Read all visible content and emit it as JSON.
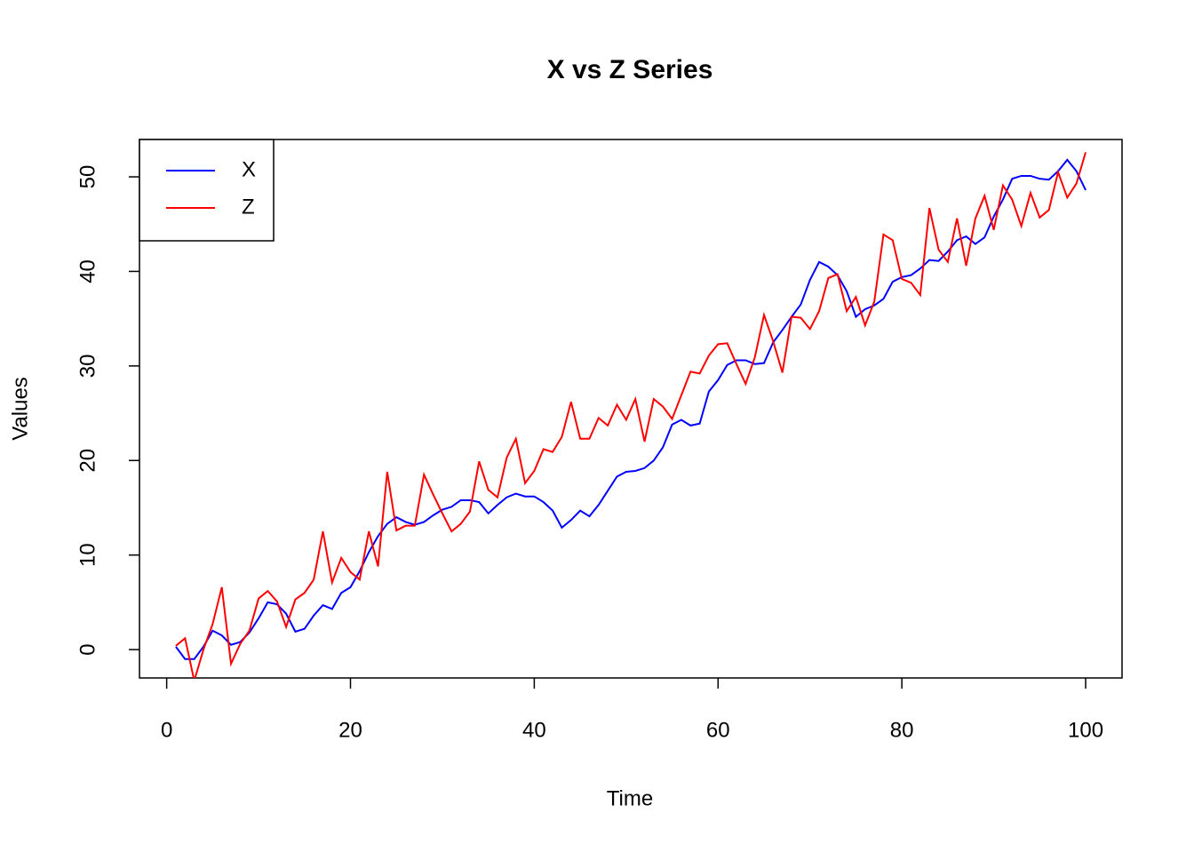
{
  "chart_data": {
    "type": "line",
    "title": "X vs Z Series",
    "x_label": "Time",
    "y_label": "Values",
    "x": [
      1,
      2,
      3,
      4,
      5,
      6,
      7,
      8,
      9,
      10,
      11,
      12,
      13,
      14,
      15,
      16,
      17,
      18,
      19,
      20,
      21,
      22,
      23,
      24,
      25,
      26,
      27,
      28,
      29,
      30,
      31,
      32,
      33,
      34,
      35,
      36,
      37,
      38,
      39,
      40,
      41,
      42,
      43,
      44,
      45,
      46,
      47,
      48,
      49,
      50,
      51,
      52,
      53,
      54,
      55,
      56,
      57,
      58,
      59,
      60,
      61,
      62,
      63,
      64,
      65,
      66,
      67,
      68,
      69,
      70,
      71,
      72,
      73,
      74,
      75,
      76,
      77,
      78,
      79,
      80,
      81,
      82,
      83,
      84,
      85,
      86,
      87,
      88,
      89,
      90,
      91,
      92,
      93,
      94,
      95,
      96,
      97,
      98,
      99,
      100
    ],
    "series": [
      {
        "name": "X",
        "color": "#0000ff",
        "values": [
          0.3,
          -1.0,
          -1.0,
          0.3,
          2.0,
          1.5,
          0.5,
          0.8,
          1.8,
          3.3,
          5.0,
          4.8,
          3.8,
          1.9,
          2.2,
          3.6,
          4.7,
          4.3,
          6.0,
          6.6,
          8.3,
          10.3,
          12.0,
          13.3,
          14.0,
          13.5,
          13.2,
          13.5,
          14.2,
          14.8,
          15.1,
          15.8,
          15.8,
          15.6,
          14.4,
          15.3,
          16.1,
          16.5,
          16.2,
          16.2,
          15.6,
          14.7,
          12.9,
          13.7,
          14.7,
          14.1,
          15.3,
          16.8,
          18.3,
          18.8,
          18.9,
          19.2,
          20.0,
          21.4,
          23.8,
          24.3,
          23.7,
          23.9,
          27.3,
          28.5,
          30.1,
          30.6,
          30.6,
          30.2,
          30.3,
          32.5,
          33.8,
          35.2,
          36.5,
          39.1,
          41.0,
          40.5,
          39.6,
          37.9,
          35.2,
          36.0,
          36.4,
          37.1,
          38.9,
          39.4,
          39.6,
          40.3,
          41.2,
          41.1,
          42.1,
          43.3,
          43.7,
          42.9,
          43.6,
          45.8,
          47.6,
          49.8,
          50.1,
          50.1,
          49.8,
          49.7,
          50.6,
          51.8,
          50.6,
          48.6
        ]
      },
      {
        "name": "Z",
        "color": "#ff0000",
        "values": [
          0.4,
          1.2,
          -3.3,
          0.0,
          2.7,
          6.6,
          -1.5,
          0.6,
          2.0,
          5.4,
          6.2,
          5.1,
          2.4,
          5.3,
          6.0,
          7.4,
          12.5,
          7.1,
          9.7,
          8.2,
          7.4,
          12.5,
          8.8,
          18.8,
          12.6,
          13.1,
          13.1,
          18.5,
          16.4,
          14.4,
          12.5,
          13.3,
          14.6,
          19.9,
          16.9,
          16.1,
          20.3,
          22.3,
          17.6,
          18.9,
          21.2,
          20.9,
          22.5,
          26.2,
          22.3,
          22.3,
          24.5,
          23.7,
          25.9,
          24.3,
          26.5,
          22.0,
          26.5,
          25.7,
          24.4,
          26.9,
          29.4,
          29.2,
          31.1,
          32.3,
          32.4,
          30.2,
          28.1,
          30.9,
          35.4,
          32.6,
          29.3,
          35.2,
          35.1,
          33.9,
          35.8,
          39.3,
          39.7,
          35.8,
          37.3,
          34.3,
          36.8,
          43.9,
          43.3,
          39.2,
          38.8,
          37.5,
          46.7,
          42.3,
          41.0,
          45.6,
          40.6,
          45.6,
          48.0,
          44.4,
          49.1,
          47.6,
          44.8,
          48.3,
          45.7,
          46.5,
          50.5,
          47.8,
          49.3,
          52.6
        ]
      }
    ],
    "xlim": [
      -2.96,
      103.96
    ],
    "ylim": [
      -3.0,
      53.95
    ],
    "xticks": [
      0,
      20,
      40,
      60,
      80,
      100
    ],
    "yticks": [
      0,
      10,
      20,
      30,
      40,
      50
    ],
    "legend": "top-left"
  }
}
